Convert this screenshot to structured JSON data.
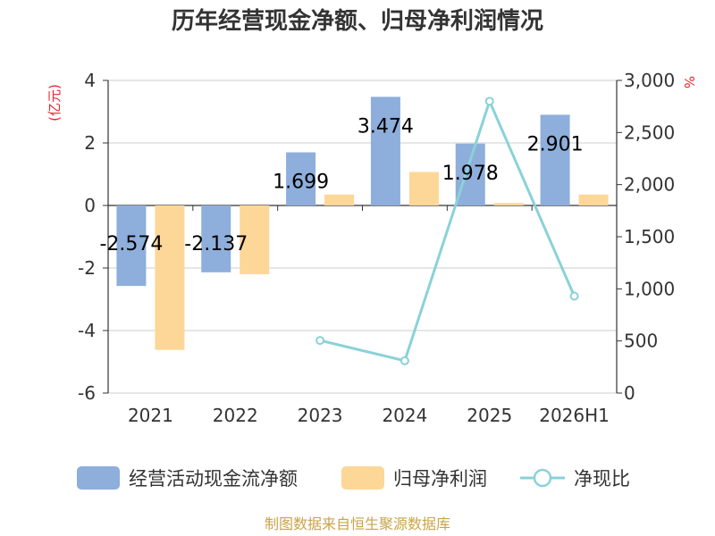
{
  "chart_data": {
    "type": "bar",
    "title": "历年经营现金净额、归母净利润情况",
    "categories": [
      "2021",
      "2022",
      "2023",
      "2024",
      "2025",
      "2026H1"
    ],
    "y_left": {
      "unit": "(亿元)",
      "ylim": [
        -6,
        4
      ],
      "ticks": [
        -6,
        -4,
        -2,
        0,
        2,
        4
      ]
    },
    "y_right": {
      "unit": "%",
      "ylim": [
        0,
        3000
      ],
      "ticks": [
        0,
        500,
        1000,
        1500,
        2000,
        2500,
        3000
      ],
      "tick_labels": [
        "0",
        "500",
        "1,000",
        "1,500",
        "2,000",
        "2,500",
        "3,000"
      ]
    },
    "series": [
      {
        "name": "经营活动现金流净额",
        "type": "bar",
        "axis": "left",
        "color": "#8eaedb",
        "values": [
          -2.574,
          -2.137,
          1.699,
          3.474,
          1.978,
          2.901
        ],
        "labels": [
          "-2.574",
          "-2.137",
          "1.699",
          "3.474",
          "1.978",
          "2.901"
        ]
      },
      {
        "name": "归母净利润",
        "type": "bar",
        "axis": "left",
        "color": "#fdd797",
        "values": [
          -4.62,
          -2.2,
          0.35,
          1.07,
          0.08,
          0.35
        ]
      },
      {
        "name": "净现比",
        "type": "line",
        "axis": "right",
        "color": "#8ad2d8",
        "values": [
          null,
          null,
          505,
          310,
          2800,
          930
        ]
      }
    ],
    "grid": true,
    "legend": "bottom",
    "source": "制图数据来自恒生聚源数据库"
  }
}
